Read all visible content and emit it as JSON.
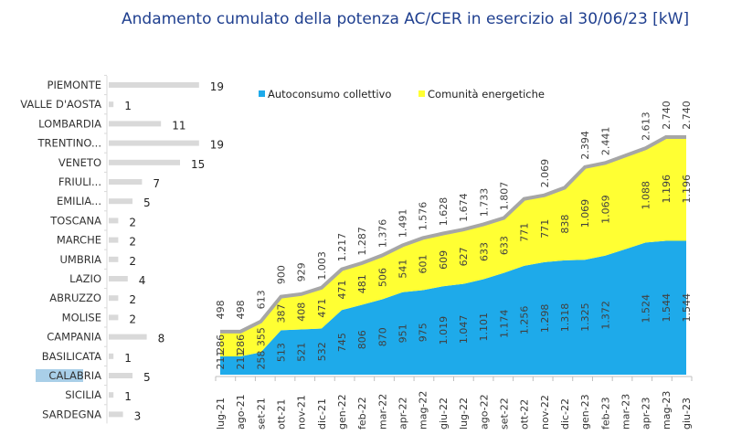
{
  "title": "Andamento cumulato della potenza AC/CER in esercizio al 30/06/23 [kW]",
  "chart_data": [
    {
      "type": "bar",
      "orientation": "horizontal",
      "categories": [
        "PIEMONTE",
        "VALLE D'AOSTA",
        "LOMBARDIA",
        "TRENTINO...",
        "VENETO",
        "FRIULI...",
        "EMILIA...",
        "TOSCANA",
        "MARCHE",
        "UMBRIA",
        "LAZIO",
        "ABRUZZO",
        "MOLISE",
        "CAMPANIA",
        "BASILICATA",
        "CALABRIA",
        "SICILIA",
        "SARDEGNA"
      ],
      "values": [
        19,
        1,
        11,
        19,
        15,
        7,
        5,
        2,
        2,
        2,
        4,
        2,
        2,
        8,
        1,
        5,
        1,
        3
      ],
      "highlighted": "CALABRIA",
      "colors": {
        "bar": "#d9d9d9",
        "highlight": "#a9cfe8"
      }
    },
    {
      "type": "area",
      "stacked": true,
      "legend_position": "top",
      "categories": [
        "lug-21",
        "ago-21",
        "set-21",
        "ott-21",
        "nov-21",
        "dic-21",
        "gen-22",
        "feb-22",
        "mar-22",
        "apr-22",
        "mag-22",
        "giu-22",
        "lug-22",
        "ago-22",
        "set-22",
        "ott-22",
        "nov-22",
        "dic-22",
        "gen-23",
        "feb-23",
        "mar-23",
        "apr-23",
        "mag-23",
        "giu-23"
      ],
      "series": [
        {
          "name": "Autoconsumo collettivo",
          "color": "#1eaaea",
          "values": [
            211,
            211,
            258,
            513,
            521,
            532,
            745,
            806,
            870,
            951,
            975,
            1019,
            1047,
            1101,
            1174,
            1256,
            1298,
            1318,
            1325,
            1372,
            null,
            1524,
            1544,
            1544
          ]
        },
        {
          "name": "Comunità energetiche",
          "color": "#ffff33",
          "values": [
            286,
            286,
            355,
            387,
            408,
            471,
            471,
            481,
            506,
            541,
            601,
            609,
            627,
            633,
            633,
            771,
            771,
            838,
            1069,
            1069,
            null,
            1088,
            1196,
            1196
          ]
        }
      ],
      "totals": [
        498,
        498,
        613,
        900,
        929,
        1003,
        1217,
        1287,
        1376,
        1491,
        1576,
        1628,
        1674,
        1733,
        1807,
        null,
        2069,
        null,
        2394,
        2441,
        null,
        2613,
        2740,
        2740
      ],
      "total_line_color": "#a6a6a6",
      "ylim": [
        0,
        2740
      ]
    }
  ]
}
